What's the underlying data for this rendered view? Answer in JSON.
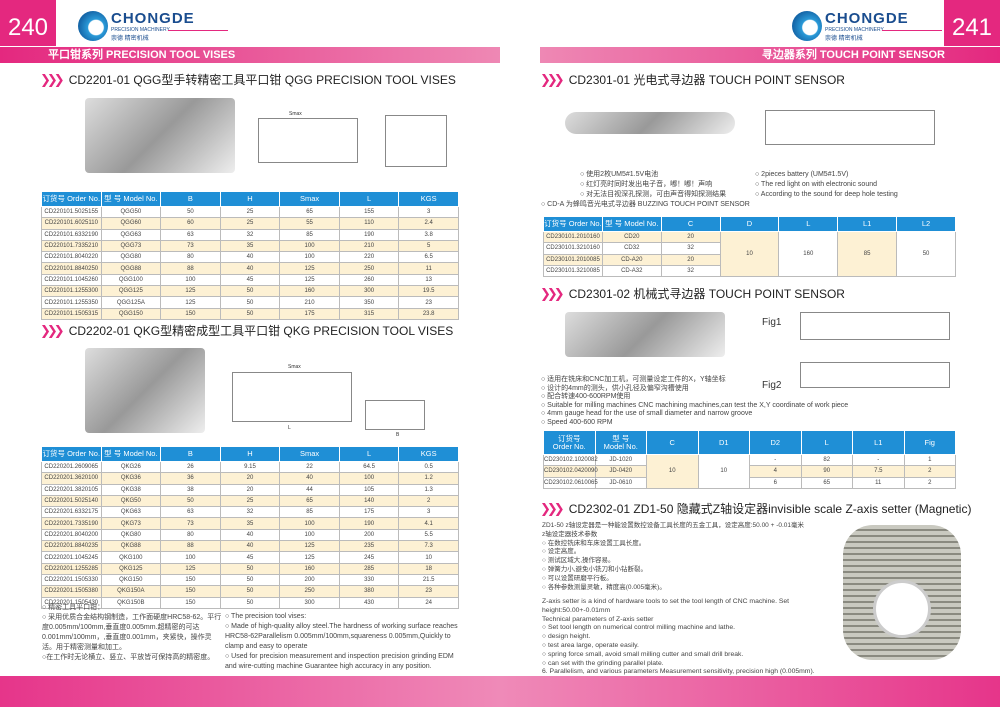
{
  "left": {
    "page_number": "240",
    "section": "平口钳系列 PRECISION TOOL VISES",
    "logo": {
      "brand": "CHONGDE",
      "sub": "PRECISION MACHINERY",
      "cn": "崇德 精密机械"
    },
    "title1": "CD2201-01  QGG型手转精密工具平口钳  QGG PRECISION TOOL VISES",
    "table1": {
      "headers": [
        "订货号 Order No.",
        "型 号 Model No.",
        "B",
        "H",
        "Smax",
        "L",
        "KGS"
      ],
      "rows": [
        [
          "CD220101.5025155",
          "QGG50",
          "50",
          "25",
          "65",
          "155",
          "3"
        ],
        [
          "CD220101.6025110",
          "QGG60",
          "60",
          "25",
          "55",
          "110",
          "2.4"
        ],
        [
          "CD220101.6332190",
          "QGG63",
          "63",
          "32",
          "85",
          "190",
          "3.8"
        ],
        [
          "CD220101.7335210",
          "QGG73",
          "73",
          "35",
          "100",
          "210",
          "5"
        ],
        [
          "CD220101.8040220",
          "QGG80",
          "80",
          "40",
          "100",
          "220",
          "6.5"
        ],
        [
          "CD220101.8840250",
          "QGG88",
          "88",
          "40",
          "125",
          "250",
          "11"
        ],
        [
          "CD220101.1045260",
          "QGG100",
          "100",
          "45",
          "125",
          "260",
          "13"
        ],
        [
          "CD220101.1255300",
          "QGG125",
          "125",
          "50",
          "160",
          "300",
          "19.5"
        ],
        [
          "CD220101.1255350",
          "QGG125A",
          "125",
          "50",
          "210",
          "350",
          "23"
        ],
        [
          "CD220101.1505315",
          "QGG150",
          "150",
          "50",
          "175",
          "315",
          "23.8"
        ]
      ]
    },
    "title2": "CD2202-01  QKG型精密成型工具平口钳  QKG PRECISION TOOL VISES",
    "table2": {
      "headers": [
        "订货号 Order No.",
        "型 号 Model No.",
        "B",
        "H",
        "Smax",
        "L",
        "KGS"
      ],
      "rows": [
        [
          "CD220201.2609065",
          "QKG26",
          "26",
          "9.15",
          "22",
          "64.5",
          "0.5"
        ],
        [
          "CD220201.3620100",
          "QKG36",
          "36",
          "20",
          "40",
          "100",
          "1.2"
        ],
        [
          "CD220201.3820105",
          "QKG38",
          "38",
          "20",
          "44",
          "105",
          "1.3"
        ],
        [
          "CD220201.5025140",
          "QKG50",
          "50",
          "25",
          "65",
          "140",
          "2"
        ],
        [
          "CD220201.6332175",
          "QKG63",
          "63",
          "32",
          "85",
          "175",
          "3"
        ],
        [
          "CD220201.7335190",
          "QKG73",
          "73",
          "35",
          "100",
          "190",
          "4.1"
        ],
        [
          "CD220201.8040200",
          "QKG80",
          "80",
          "40",
          "100",
          "200",
          "5.5"
        ],
        [
          "CD220201.8840235",
          "QKG88",
          "88",
          "40",
          "125",
          "235",
          "7.3"
        ],
        [
          "CD220201.1045245",
          "QKG100",
          "100",
          "45",
          "125",
          "245",
          "10"
        ],
        [
          "CD220201.1255285",
          "QKG125",
          "125",
          "50",
          "160",
          "285",
          "18"
        ],
        [
          "CD220201.1505330",
          "QKG150",
          "150",
          "50",
          "200",
          "330",
          "21.5"
        ],
        [
          "CD220201.1505380",
          "QKG150A",
          "150",
          "50",
          "250",
          "380",
          "23"
        ],
        [
          "CD220201.1505430",
          "QKG150B",
          "150",
          "50",
          "300",
          "430",
          "24"
        ]
      ]
    },
    "notes_cn": [
      "○ 精密工具平口钳：",
      "○ 采用优质合金结构钢制造，工作面硬度HRC58-62。平行度0.005mm/100mm,垂直度0.005mm.超精密的可达0.001mm/100mm，,垂直度0.001mm，夹紧快，操作灵活。用于精密测量和加工。",
      "○在工作时无论横立、竖立、平放皆可保持高的精密度。"
    ],
    "notes_en": [
      "○ The precision tool vises:",
      "○ Made of high-quality alloy steel.The hardness of working surface reaches HRC58-62Parallelism 0.005mm/100mm,squareness 0.005mm,Quickly to clamp and easy to operate",
      "○ Used for precision measurement and inspection precision grinding EDM and wire-cutting machine Guarantee high accuracy in any position."
    ],
    "drawing_labels": {
      "smax": "Smax",
      "l": "L",
      "b": "B",
      "h": "H"
    }
  },
  "right": {
    "page_number": "241",
    "section": "寻边器系列 TOUCH POINT SENSOR",
    "logo": {
      "brand": "CHONGDE",
      "sub": "PRECISION MACHINERY",
      "cn": "崇德 精密机械"
    },
    "title1": "CD2301-01 光电式寻边器  TOUCH POINT SENSOR",
    "bullets1_cn": [
      "○ 使用2枚UM5#1.5V电池",
      "○ 红灯亮时同时发出电子音，嘟！嘟！声响",
      "○ 对无法目视深孔探测，可由声音得知探测结果"
    ],
    "bullets1_en": [
      "○ 2pieces battery (UM5#1.5V)",
      "○ The red light on with electronic sound",
      "○ According to the sound for deep hole testing"
    ],
    "cda_note": "○ CD-A 为蜂鸣音光电式寻边器 BUZZING TOUCH POINT SENSOR",
    "table3": {
      "headers": [
        "订货号 Order No.",
        "型 号 Model No.",
        "C",
        "D",
        "L",
        "L1",
        "L2"
      ],
      "rows": [
        [
          "CD230101.2010160",
          "CD20",
          "20"
        ],
        [
          "CD230101.3210160",
          "CD32",
          "32"
        ],
        [
          "CD230101.2010085",
          "CD-A20",
          "20"
        ],
        [
          "CD230101.3210085",
          "CD-A32",
          "32"
        ]
      ],
      "shared": [
        "10",
        "160",
        "85",
        "50"
      ]
    },
    "title2": "CD2301-02 机械式寻边器  TOUCH POINT SENSOR",
    "fig1": "Fig1",
    "fig2": "Fig2",
    "bullets2": [
      "○ 适用在铣床和CNC加工机，可测量设定工件的X，Y轴坐标",
      "○ 设计的4mm的测头，供小孔径及偏窄沟槽使用",
      "○ 配合转速400-600RPM使用",
      "○ Suitable for milling machines CNC machining machines,can test the X,Y coordinate of work piece",
      "○ 4mm gauge head for the use of small diameter and narrow groove",
      "○ Speed 400-600 RPM"
    ],
    "table4": {
      "headers": [
        "订货号\nOrder No.",
        "型 号\nModel No.",
        "C",
        "D1",
        "D2",
        "L",
        "L1",
        "Fig"
      ],
      "rows": [
        [
          "CD230102.1020082",
          "JD-1020",
          "-",
          "82",
          "-",
          "1"
        ],
        [
          "CD230102.0420090",
          "JD-0420",
          "4",
          "90",
          "7.5",
          "2"
        ],
        [
          "CD230102.0610065",
          "JD-0610",
          "6",
          "65",
          "11",
          "2"
        ]
      ],
      "shared": [
        "10",
        "10"
      ]
    },
    "title3": "CD2302-01 ZD1-50 隐藏式Z轴设定器invisible scale Z-axis setter (Magnetic)",
    "z_cn": [
      "ZD1-50 z轴设定器是一种能设置数控设备工具长度的五金工具，设定高度:50.00 + -0.01毫米",
      "z轴设定器技术参数",
      "○ 在数控铣床和车床设置工具长度。",
      "○ 设定高度。",
      "○ 测试区域大,操作容易。",
      "○ 弹簧力小,避免小铣刀和小钻断裂。",
      "○ 可以设置研磨平行板。",
      "○ 各种参数测量灵敏，精度高(0.005毫米)。"
    ],
    "z_en": [
      "Z-axis setter is a kind of hardware tools to set the tool length of CNC machine. Set height:50.00+-0.01mm",
      "Technical parameters of Z-axis setter",
      "○  Set tool length on numerical control milling machine and lathe.",
      "○  design height.",
      "○  test area large, operate easily.",
      "○  spring force small, avoid small milling cutter and small drill break.",
      "○  can set with the grinding parallel plate.",
      "6. Parallelism, and various parameters Measurement sensitivity, precision high (0.005mm)."
    ]
  },
  "colors": {
    "accent": "#e4287f",
    "table_header": "#1f8fd6",
    "row_alt": "#fdf1d4"
  }
}
